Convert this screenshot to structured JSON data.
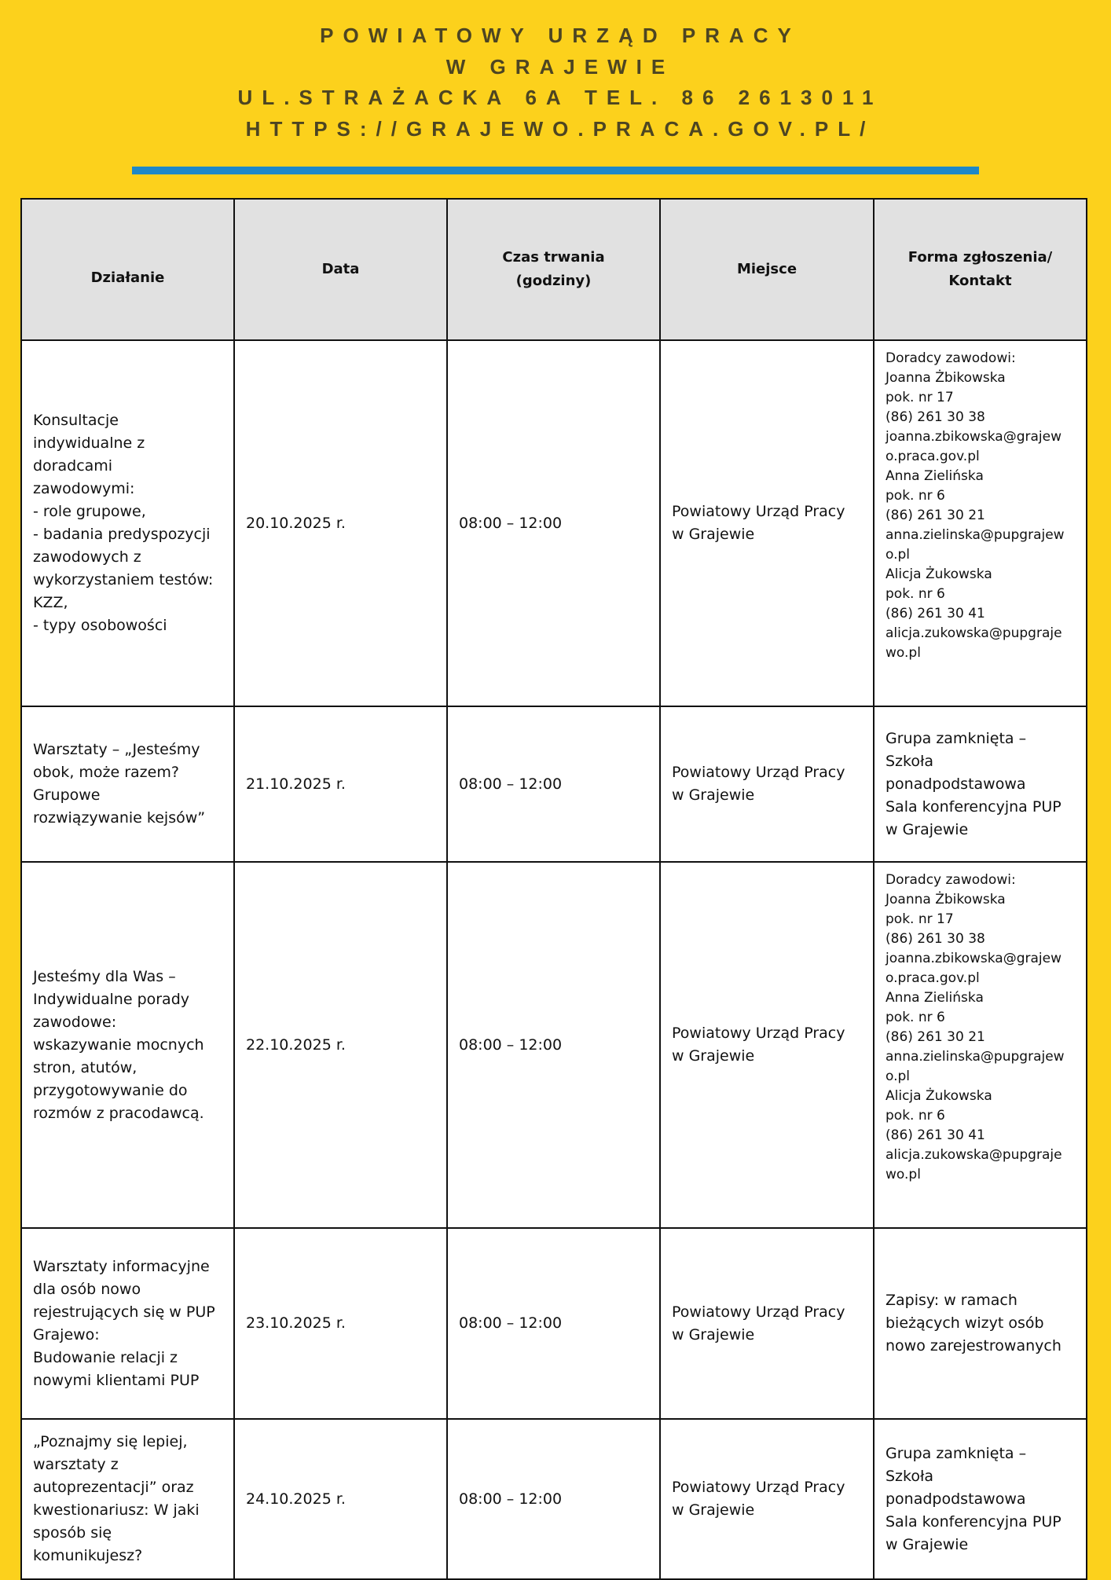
{
  "header": {
    "line1": "POWIATOWY URZĄD PRACY",
    "line2": "W GRAJEWIE",
    "line3": "UL.STRAŻACKA 6A TEL. 86 2613011",
    "line4": "HTTPS://GRAJEWO.PRACA.GOV.PL/"
  },
  "colors": {
    "background": "#fcd11c",
    "accent_bar": "#1e88c7",
    "header_row": "#e1e1e1",
    "title_text": "#4d4522"
  },
  "table": {
    "columns": [
      "Działanie",
      "Data",
      "Czas trwania\n(godziny)",
      "Miejsce",
      "Forma zgłoszenia/\nKontakt"
    ],
    "rows": [
      {
        "activity": "Konsultacje\nindywidualne z\ndoradcami\nzawodowymi:\n- role grupowe,\n- badania predyspozycji\nzawodowych z\nwykorzystaniem testów:\nKZZ,\n - typy osobowości",
        "date": "20.10.2025 r.",
        "time": "08:00 – 12:00",
        "place": "Powiatowy Urząd Pracy\n w Grajewie",
        "contact": "Doradcy zawodowi:\nJoanna Żbikowska\npok. nr 17\n(86) 261 30 38\njoanna.zbikowska@grajew\no.praca.gov.pl\nAnna Zielińska\npok. nr 6\n(86) 261 30 21\nanna.zielinska@pupgrajew\no.pl\nAlicja Żukowska\npok. nr 6\n(86) 261 30 41\nalicja.zukowska@pupgraje\nwo.pl"
      },
      {
        "activity": "Warsztaty – „Jesteśmy\nobok, może razem?\nGrupowe\nrozwiązywanie kejsów”",
        "date": "21.10.2025 r.",
        "time": "08:00 – 12:00",
        "place": "Powiatowy Urząd Pracy\n w Grajewie",
        "contact": "Grupa zamknięta –\nSzkoła\nponadpodstawowa\nSala konferencyjna PUP\nw Grajewie"
      },
      {
        "activity": "Jesteśmy dla Was –\nIndywidualne porady\nzawodowe:\nwskazywanie mocnych\nstron, atutów,\nprzygotowywanie do\nrozmów z pracodawcą.",
        "date": "22.10.2025 r.",
        "time": "08:00 – 12:00",
        "place": "Powiatowy Urząd Pracy\n w Grajewie",
        "contact": "Doradcy zawodowi:\nJoanna Żbikowska\npok. nr 17\n(86) 261 30 38\njoanna.zbikowska@grajew\no.praca.gov.pl\nAnna Zielińska\npok. nr 6\n(86) 261 30 21\nanna.zielinska@pupgrajew\no.pl\nAlicja Żukowska\npok. nr 6\n(86) 261 30 41\nalicja.zukowska@pupgraje\nwo.pl"
      },
      {
        "activity": "Warsztaty informacyjne\ndla osób nowo\nrejestrujących się w PUP\nGrajewo:\nBudowanie relacji z\nnowymi klientami PUP",
        "date": "23.10.2025 r.",
        "time": "08:00 – 12:00",
        "place": "Powiatowy Urząd Pracy\n w Grajewie",
        "contact": "Zapisy: w ramach\nbieżących wizyt osób\nnowo zarejestrowanych"
      },
      {
        "activity": " „Poznajmy się lepiej,\nwarsztaty z\nautoprezentacji” oraz\nkwestionariusz: W jaki\nsposób się\nkomunikujesz?",
        "date": "24.10.2025 r.",
        "time": "08:00 – 12:00",
        "place": "Powiatowy Urząd Pracy\n w Grajewie",
        "contact": "Grupa zamknięta –\nSzkoła\nponadpodstawowa\nSala konferencyjna PUP\nw Grajewie"
      }
    ]
  }
}
